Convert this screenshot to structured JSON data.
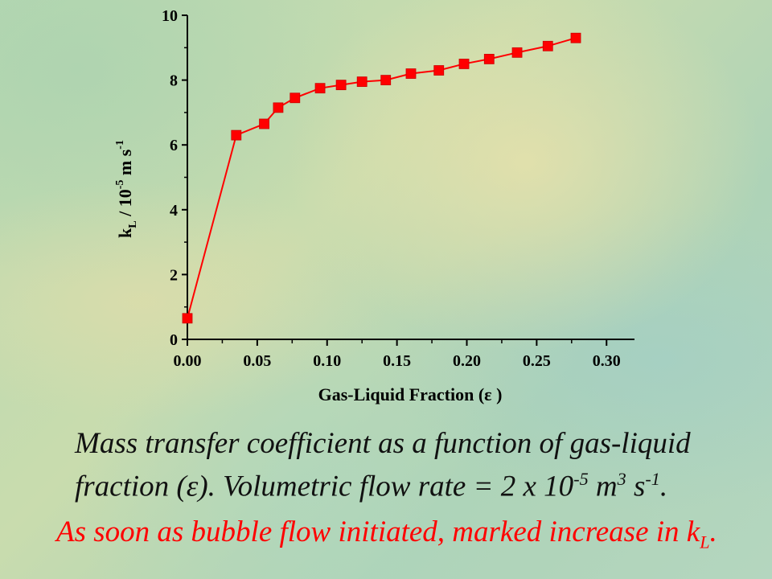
{
  "chart_data": {
    "type": "line",
    "xlabel": "Gas-Liquid Fraction (ε )",
    "ylabel": "k_L / 10^-5 m s^-1",
    "xlim": [
      0.0,
      0.32
    ],
    "ylim": [
      0,
      10
    ],
    "xticks": [
      "0.00",
      "0.05",
      "0.10",
      "0.15",
      "0.20",
      "0.25",
      "0.30"
    ],
    "yticks": [
      "0",
      "2",
      "4",
      "6",
      "8",
      "10"
    ],
    "grid": false,
    "series": [
      {
        "color": "#ff0000",
        "marker": "square",
        "x": [
          0.0,
          0.035,
          0.055,
          0.065,
          0.077,
          0.095,
          0.11,
          0.125,
          0.142,
          0.16,
          0.18,
          0.198,
          0.216,
          0.236,
          0.258,
          0.278
        ],
        "y": [
          0.65,
          6.3,
          6.65,
          7.15,
          7.45,
          7.75,
          7.85,
          7.95,
          8.0,
          8.2,
          8.3,
          8.5,
          8.65,
          8.85,
          9.05,
          9.3
        ]
      }
    ]
  },
  "axis_title_x": {
    "main": "Gas-Liquid Fraction (",
    "greek": "ε",
    "close": " )"
  },
  "axis_title_y": {
    "k": "k",
    "sub": "L",
    "mid": " / 10",
    "exp": "-5",
    "unit": " m s",
    "unit_exp": "-1"
  },
  "caption": {
    "part1": "Mass transfer coefficient as a function of gas-liquid fraction (",
    "greek": "ε",
    "part2": "). Volumetric flow rate = 2 x  10",
    "exp1": "-5",
    "part3": " m",
    "exp2": "3",
    "part4": " s",
    "exp3": "-1",
    "part5": "."
  },
  "note": {
    "text": "As soon as bubble flow initiated, marked increase in k",
    "sub": "L",
    "end": "."
  },
  "colors": {
    "series": "#ff0000",
    "axis": "#000000",
    "note": "#ff0000"
  }
}
